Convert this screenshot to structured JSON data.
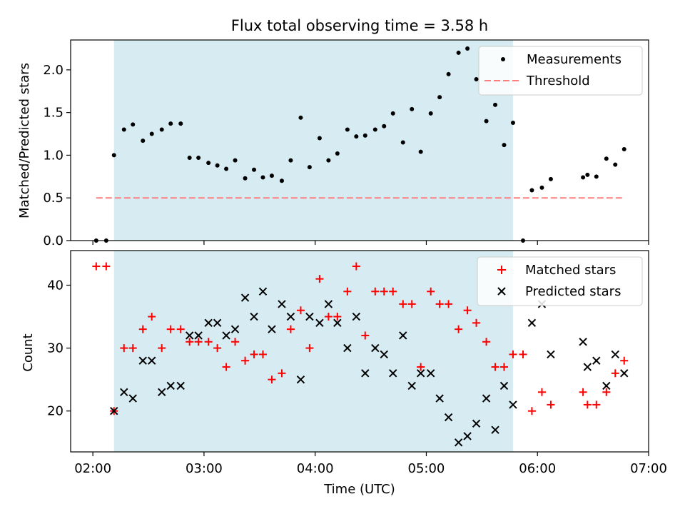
{
  "chart_data": {
    "type": "scatter",
    "title": "Flux total observing time = 3.58 h",
    "xlabel": "Time (UTC)",
    "x_tick_labels": [
      "02:00",
      "03:00",
      "04:00",
      "05:00",
      "06:00",
      "07:00"
    ],
    "x_ticks_hours": [
      2,
      3,
      4,
      5,
      6,
      7
    ],
    "xlim_hours": [
      1.8,
      7.0
    ],
    "shaded_span_hours": [
      2.19,
      5.78
    ],
    "colors": {
      "shade": "#add8e6",
      "measurement": "#000000",
      "threshold": "#ff7f7f",
      "matched": "#ff0000",
      "predicted": "#000000"
    },
    "top": {
      "ylabel": "Matched/Predicted stars",
      "ylim": [
        0,
        2.35
      ],
      "yticks": [
        "0.0",
        "0.5",
        "1.0",
        "1.5",
        "2.0"
      ],
      "threshold": {
        "value": 0.5,
        "x_range_hours": [
          2.03,
          6.78
        ]
      },
      "legend": [
        "Measurements",
        "Threshold"
      ],
      "measurements": [
        [
          2.03,
          0.0
        ],
        [
          2.12,
          0.0
        ],
        [
          2.19,
          1.0
        ],
        [
          2.28,
          1.3
        ],
        [
          2.36,
          1.36
        ],
        [
          2.45,
          1.17
        ],
        [
          2.53,
          1.25
        ],
        [
          2.62,
          1.3
        ],
        [
          2.7,
          1.37
        ],
        [
          2.79,
          1.37
        ],
        [
          2.87,
          0.97
        ],
        [
          2.95,
          0.97
        ],
        [
          3.04,
          0.91
        ],
        [
          3.12,
          0.88
        ],
        [
          3.2,
          0.84
        ],
        [
          3.28,
          0.94
        ],
        [
          3.37,
          0.73
        ],
        [
          3.45,
          0.83
        ],
        [
          3.53,
          0.74
        ],
        [
          3.61,
          0.76
        ],
        [
          3.7,
          0.7
        ],
        [
          3.78,
          0.94
        ],
        [
          3.87,
          1.44
        ],
        [
          3.95,
          0.86
        ],
        [
          4.04,
          1.2
        ],
        [
          4.12,
          0.94
        ],
        [
          4.2,
          1.02
        ],
        [
          4.29,
          1.3
        ],
        [
          4.37,
          1.22
        ],
        [
          4.45,
          1.23
        ],
        [
          4.54,
          1.3
        ],
        [
          4.62,
          1.34
        ],
        [
          4.7,
          1.49
        ],
        [
          4.79,
          1.15
        ],
        [
          4.87,
          1.54
        ],
        [
          4.95,
          1.04
        ],
        [
          5.04,
          1.49
        ],
        [
          5.12,
          1.68
        ],
        [
          5.2,
          1.95
        ],
        [
          5.29,
          2.2
        ],
        [
          5.37,
          2.25
        ],
        [
          5.45,
          1.89
        ],
        [
          5.54,
          1.4
        ],
        [
          5.62,
          1.59
        ],
        [
          5.7,
          1.12
        ],
        [
          5.78,
          1.38
        ],
        [
          5.87,
          0.0
        ],
        [
          5.95,
          0.59
        ],
        [
          6.04,
          0.62
        ],
        [
          6.12,
          0.72
        ],
        [
          6.41,
          0.74
        ],
        [
          6.45,
          0.77
        ],
        [
          6.53,
          0.75
        ],
        [
          6.62,
          0.96
        ],
        [
          6.7,
          0.89
        ],
        [
          6.78,
          1.07
        ]
      ]
    },
    "bottom": {
      "ylabel": "Count",
      "ylim": [
        13.5,
        45.5
      ],
      "yticks": [
        "20",
        "30",
        "40"
      ],
      "legend": [
        "Matched stars",
        "Predicted stars"
      ],
      "matched": [
        [
          2.03,
          43
        ],
        [
          2.12,
          43
        ],
        [
          2.19,
          20
        ],
        [
          2.28,
          30
        ],
        [
          2.36,
          30
        ],
        [
          2.45,
          33
        ],
        [
          2.53,
          35
        ],
        [
          2.62,
          30
        ],
        [
          2.7,
          33
        ],
        [
          2.79,
          33
        ],
        [
          2.87,
          31
        ],
        [
          2.95,
          31
        ],
        [
          3.04,
          31
        ],
        [
          3.12,
          30
        ],
        [
          3.2,
          27
        ],
        [
          3.28,
          31
        ],
        [
          3.37,
          28
        ],
        [
          3.45,
          29
        ],
        [
          3.53,
          29
        ],
        [
          3.61,
          25
        ],
        [
          3.7,
          26
        ],
        [
          3.78,
          33
        ],
        [
          3.87,
          36
        ],
        [
          3.95,
          30
        ],
        [
          4.04,
          41
        ],
        [
          4.12,
          35
        ],
        [
          4.2,
          35
        ],
        [
          4.29,
          39
        ],
        [
          4.37,
          43
        ],
        [
          4.45,
          32
        ],
        [
          4.54,
          39
        ],
        [
          4.62,
          39
        ],
        [
          4.7,
          39
        ],
        [
          4.79,
          37
        ],
        [
          4.87,
          37
        ],
        [
          4.95,
          27
        ],
        [
          5.04,
          39
        ],
        [
          5.12,
          37
        ],
        [
          5.2,
          37
        ],
        [
          5.29,
          33
        ],
        [
          5.37,
          36
        ],
        [
          5.45,
          34
        ],
        [
          5.54,
          31
        ],
        [
          5.62,
          27
        ],
        [
          5.7,
          27
        ],
        [
          5.78,
          29
        ],
        [
          5.87,
          29
        ],
        [
          5.95,
          20
        ],
        [
          6.04,
          23
        ],
        [
          6.12,
          21
        ],
        [
          6.41,
          23
        ],
        [
          6.45,
          21
        ],
        [
          6.53,
          21
        ],
        [
          6.62,
          23
        ],
        [
          6.7,
          26
        ],
        [
          6.78,
          28
        ]
      ],
      "predicted": [
        [
          2.19,
          20
        ],
        [
          2.28,
          23
        ],
        [
          2.36,
          22
        ],
        [
          2.45,
          28
        ],
        [
          2.53,
          28
        ],
        [
          2.62,
          23
        ],
        [
          2.7,
          24
        ],
        [
          2.79,
          24
        ],
        [
          2.87,
          32
        ],
        [
          2.95,
          32
        ],
        [
          3.04,
          34
        ],
        [
          3.12,
          34
        ],
        [
          3.2,
          32
        ],
        [
          3.28,
          33
        ],
        [
          3.37,
          38
        ],
        [
          3.45,
          35
        ],
        [
          3.53,
          39
        ],
        [
          3.61,
          33
        ],
        [
          3.7,
          37
        ],
        [
          3.78,
          35
        ],
        [
          3.87,
          25
        ],
        [
          3.95,
          35
        ],
        [
          4.04,
          34
        ],
        [
          4.12,
          37
        ],
        [
          4.2,
          34
        ],
        [
          4.29,
          30
        ],
        [
          4.37,
          35
        ],
        [
          4.45,
          26
        ],
        [
          4.54,
          30
        ],
        [
          4.62,
          29
        ],
        [
          4.7,
          26
        ],
        [
          4.79,
          32
        ],
        [
          4.87,
          24
        ],
        [
          4.95,
          26
        ],
        [
          5.04,
          26
        ],
        [
          5.12,
          22
        ],
        [
          5.2,
          19
        ],
        [
          5.29,
          15
        ],
        [
          5.37,
          16
        ],
        [
          5.45,
          18
        ],
        [
          5.54,
          22
        ],
        [
          5.62,
          17
        ],
        [
          5.7,
          24
        ],
        [
          5.78,
          21
        ],
        [
          5.95,
          34
        ],
        [
          6.04,
          37
        ],
        [
          6.12,
          29
        ],
        [
          6.41,
          31
        ],
        [
          6.45,
          27
        ],
        [
          6.53,
          28
        ],
        [
          6.62,
          24
        ],
        [
          6.7,
          29
        ],
        [
          6.78,
          26
        ]
      ]
    }
  }
}
